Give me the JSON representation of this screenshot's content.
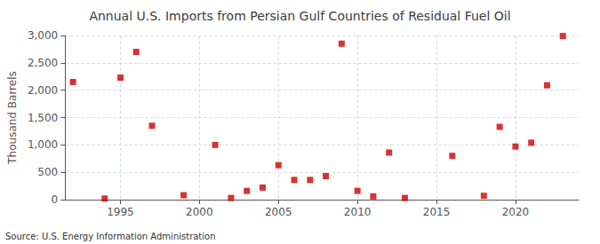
{
  "chart_data": {
    "type": "scatter",
    "title": "Annual U.S. Imports from Persian Gulf Countries of Residual Fuel Oil",
    "ylabel": "Thousand Barrels",
    "annotation": "Source: U.S. Energy Information Administration",
    "x": [
      1992,
      1994,
      1995,
      1996,
      1997,
      1999,
      2001,
      2002,
      2003,
      2004,
      2005,
      2006,
      2007,
      2008,
      2009,
      2010,
      2011,
      2012,
      2013,
      2016,
      2018,
      2019,
      2020,
      2021,
      2022,
      2023
    ],
    "values": [
      2150,
      20,
      2230,
      2700,
      1350,
      80,
      1000,
      30,
      160,
      220,
      630,
      360,
      360,
      430,
      2850,
      160,
      60,
      860,
      30,
      800,
      70,
      1330,
      970,
      1040,
      2090,
      2990
    ],
    "color": "#cc0000",
    "marker": "square",
    "xlim": [
      1991.5,
      2024
    ],
    "ylim": [
      0,
      3000
    ],
    "xticks": [
      1995,
      2000,
      2005,
      2010,
      2015,
      2020
    ],
    "yticks": [
      0,
      500,
      {
        "value": 1000,
        "label": "1,000"
      },
      {
        "value": 1500,
        "label": "1,500"
      },
      {
        "value": 2000,
        "label": "2,000"
      },
      {
        "value": 2500,
        "label": "2,500"
      },
      {
        "value": 3000,
        "label": "3,000"
      }
    ],
    "grid": true
  }
}
